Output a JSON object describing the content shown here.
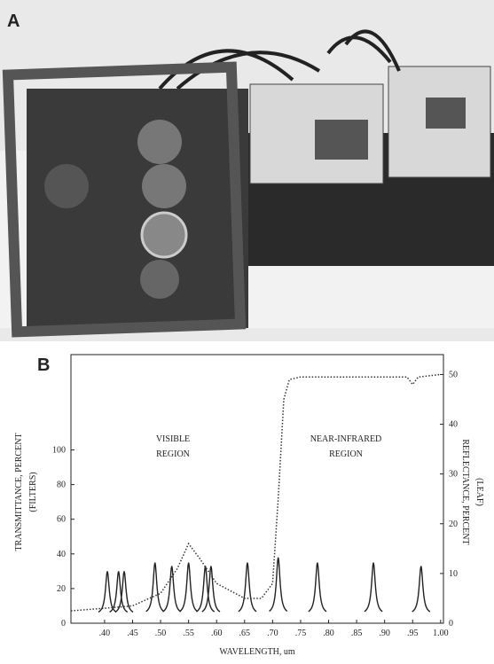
{
  "panels": [
    "A",
    "B"
  ],
  "chart_data": {
    "type": "line",
    "x_label": "WAVELENGTH, um",
    "y_label": [
      "TRANSMITTANCE, PERCENT",
      "(FILTERS)"
    ],
    "y2_label": [
      "REFLECTANCE, PERCENT",
      "(LEAF)"
    ],
    "annotations": [
      [
        "VISIBLE",
        "REGION"
      ],
      [
        "NEAR-INFRARED",
        "REGION"
      ]
    ],
    "xlim": [
      0.34,
      1.005
    ],
    "xticks": [
      {
        "value": 0.4,
        "label": ".40"
      },
      {
        "value": 0.45,
        "label": ".45"
      },
      {
        "value": 0.5,
        "label": ".50"
      },
      {
        "value": 0.55,
        "label": ".55"
      },
      {
        "value": 0.6,
        "label": ".60"
      },
      {
        "value": 0.65,
        "label": ".65"
      },
      {
        "value": 0.7,
        "label": ".70"
      },
      {
        "value": 0.75,
        "label": ".75"
      },
      {
        "value": 0.8,
        "label": ".80"
      },
      {
        "value": 0.85,
        "label": ".85"
      },
      {
        "value": 0.9,
        "label": ".90"
      },
      {
        "value": 0.95,
        "label": ".95"
      },
      {
        "value": 1.0,
        "label": "1.00"
      }
    ],
    "ylim": [
      0,
      155
    ],
    "yticks": [
      0,
      20,
      40,
      60,
      80,
      100
    ],
    "y2lim": [
      0,
      54
    ],
    "y2ticks": [
      0,
      10,
      20,
      30,
      40,
      50
    ],
    "series": [
      {
        "color": "#222222",
        "style": "peaks",
        "x": [
          0.405,
          0.425,
          0.435,
          0.49,
          0.52,
          0.55,
          0.58,
          0.59,
          0.655,
          0.71,
          0.78,
          0.88,
          0.965
        ],
        "values": [
          30,
          30,
          30,
          35,
          33,
          35,
          33,
          33,
          35,
          38,
          35,
          35,
          33
        ]
      },
      {
        "color": "#333333",
        "style": "dotted",
        "axis": "y2",
        "x": [
          0.34,
          0.4,
          0.45,
          0.5,
          0.53,
          0.55,
          0.57,
          0.6,
          0.65,
          0.68,
          0.7,
          0.71,
          0.72,
          0.73,
          0.75,
          0.94,
          0.95,
          0.96,
          1.0
        ],
        "values": [
          2.5,
          3,
          3.5,
          6,
          11,
          16,
          13,
          8,
          5,
          5,
          8,
          25,
          45,
          49,
          49.5,
          49.5,
          48,
          49.5,
          50
        ]
      }
    ]
  }
}
